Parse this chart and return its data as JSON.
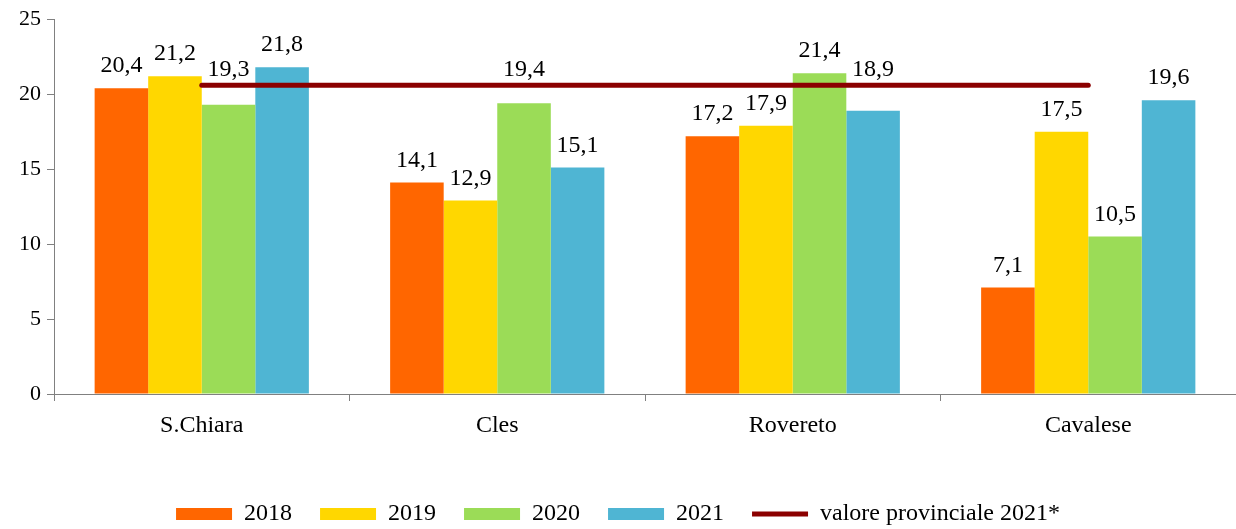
{
  "chart_data": {
    "type": "bar",
    "categories": [
      "S.Chiara",
      "Cles",
      "Rovereto",
      "Cavalese"
    ],
    "series": [
      {
        "name": "2018",
        "color": "#ff6600",
        "values": [
          20.4,
          14.1,
          17.2,
          7.1
        ],
        "value_labels": [
          "20,4",
          "14,1",
          "17,2",
          "7,1"
        ]
      },
      {
        "name": "2019",
        "color": "#ffd700",
        "values": [
          21.2,
          12.9,
          17.9,
          17.5
        ],
        "value_labels": [
          "21,2",
          "12,9",
          "17,9",
          "17,5"
        ]
      },
      {
        "name": "2020",
        "color": "#9bdc57",
        "values": [
          19.3,
          19.4,
          21.4,
          10.5
        ],
        "value_labels": [
          "19,3",
          "19,4",
          "21,4",
          "10,5"
        ]
      },
      {
        "name": "2021",
        "color": "#4fb5d3",
        "values": [
          21.8,
          15.1,
          18.9,
          19.6
        ],
        "value_labels": [
          "21,8",
          "15,1",
          "18,9",
          "19,6"
        ]
      },
      {
        "name": "valore provinciale 2021*",
        "type": "line",
        "color": "#8b0000",
        "values": [
          20.6,
          20.6,
          20.6,
          20.6
        ]
      }
    ],
    "ylim": [
      0,
      25
    ],
    "yticks": [
      0,
      5,
      10,
      15,
      20,
      25
    ],
    "legend": "bottom"
  }
}
